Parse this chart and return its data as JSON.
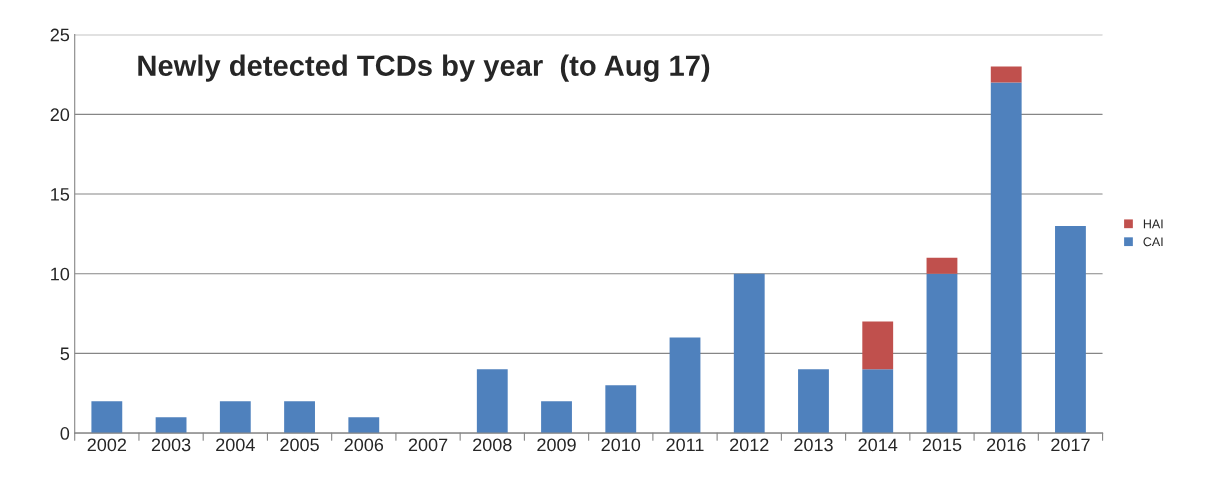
{
  "chart_data": {
    "type": "bar",
    "title": "Newly detected TCDs by year  (to Aug 17)",
    "categories": [
      "2002",
      "2003",
      "2004",
      "2005",
      "2006",
      "2007",
      "2008",
      "2009",
      "2010",
      "2011",
      "2012",
      "2013",
      "2014",
      "2015",
      "2016",
      "2017"
    ],
    "series": [
      {
        "name": "CAI",
        "color": "#4f81bd",
        "values": [
          2,
          1,
          2,
          2,
          1,
          null,
          4,
          2,
          3,
          6,
          10,
          4,
          4,
          10,
          22,
          13
        ]
      },
      {
        "name": "HAI",
        "color": "#c0504d",
        "values": [
          null,
          null,
          null,
          null,
          null,
          null,
          null,
          null,
          null,
          null,
          null,
          null,
          3,
          1,
          1,
          null
        ]
      }
    ],
    "stacked": true,
    "ylim": [
      0,
      25
    ],
    "yticks": [
      0,
      5,
      10,
      15,
      20,
      25
    ],
    "grid": "y",
    "legend": "right"
  }
}
